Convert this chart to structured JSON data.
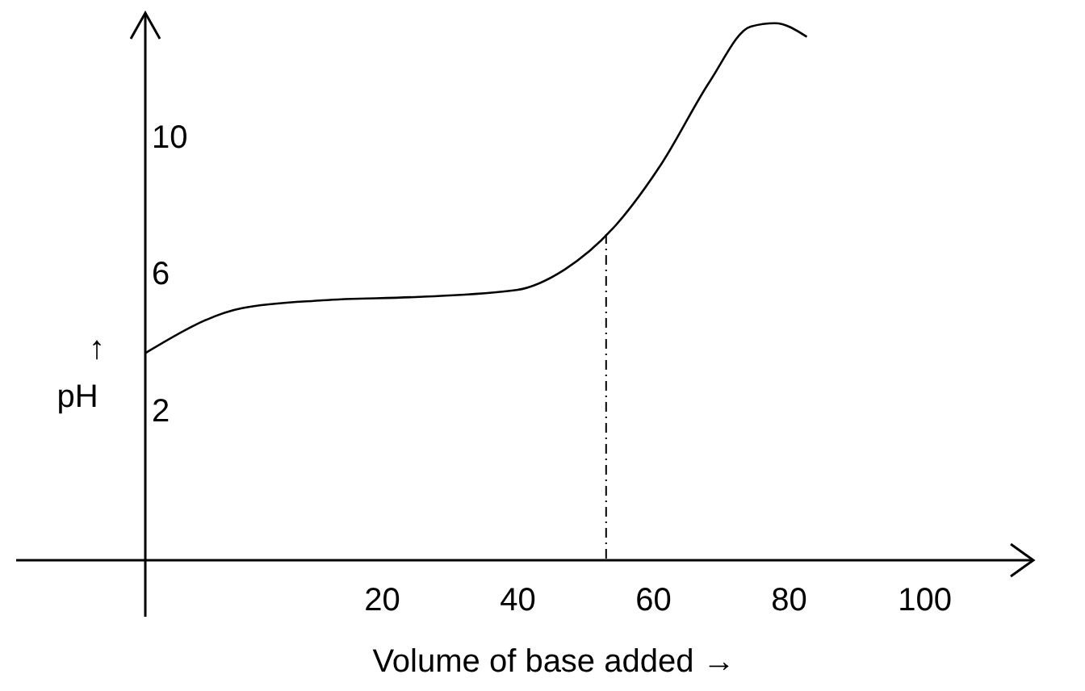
{
  "chart_data": {
    "type": "line",
    "xlabel": "Volume of base added →",
    "ylabel": "↑ pH",
    "x": [
      -15,
      -0.7,
      11.2,
      25.5,
      39.8,
      46.9,
      54,
      61.2,
      68.3,
      74.3,
      77.9,
      82.6
    ],
    "series": [
      {
        "color": "#000000",
        "values": [
          3.65,
          4.97,
          5.2,
          5.3,
          5.5,
          6.1,
          7.3,
          9.2,
          11.6,
          13.2,
          13.3,
          12.9
        ]
      }
    ],
    "xlim": [
      -34,
      116
    ],
    "xticks": [
      20,
      40,
      60,
      80,
      100
    ],
    "ylim": [
      -2.4,
      13.6
    ],
    "yticks": [
      2,
      6,
      10
    ],
    "ref_lines": [
      {
        "axis": "x",
        "value": 53,
        "line_style": "dashed",
        "color": "#000000"
      }
    ],
    "grid": false,
    "line_style": "solid"
  }
}
